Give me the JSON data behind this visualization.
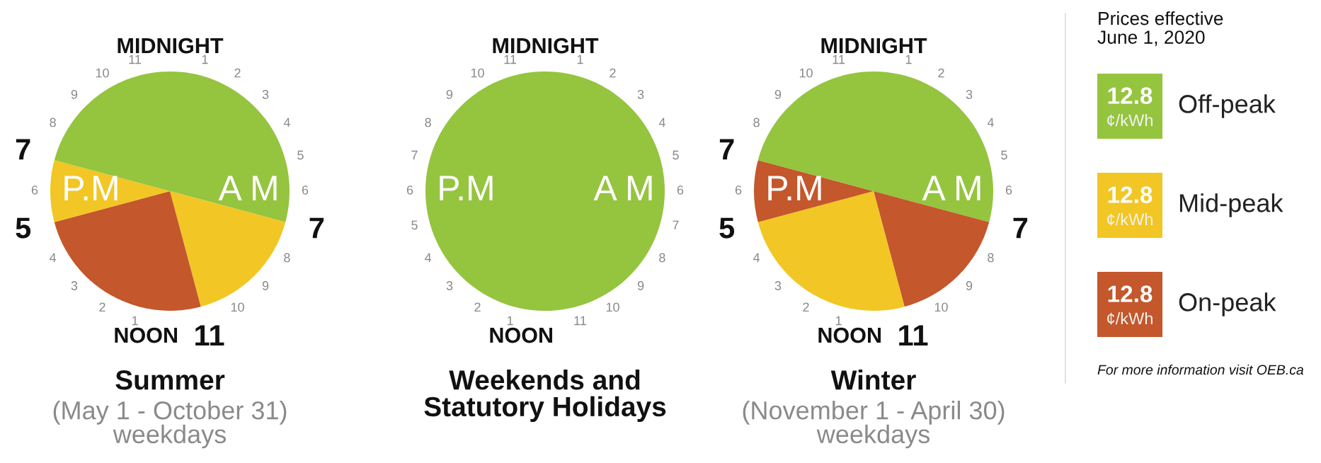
{
  "chart_data": [
    {
      "type": "pie",
      "title": "Summer",
      "subtitle": "(May 1 - October 31)\nweekdays",
      "categories": [
        null,
        null,
        null,
        null,
        null
      ],
      "values": [
        29.17,
        16.67,
        25,
        8.33,
        20.83
      ],
      "colors": [
        "#95c43f",
        "#f2c624",
        "#c4572b",
        "#f2c624",
        "#95c43f"
      ],
      "annotations": [
        "MIDNIGHT",
        "1",
        "2",
        "3",
        "4",
        "5",
        "6",
        "7",
        "8",
        "9",
        "10",
        "11",
        "NOON",
        "1",
        "2",
        "3",
        "4",
        "5",
        "6",
        "7",
        "8",
        "9",
        "10",
        "11",
        "P.M",
        "A M"
      ]
    },
    {
      "type": "pie",
      "title": "Weekends and\nStatutory Holidays",
      "categories": [
        null
      ],
      "values": [
        100
      ],
      "colors": [
        "#95c43f"
      ],
      "annotations": [
        "MIDNIGHT",
        "1",
        "2",
        "3",
        "4",
        "5",
        "6",
        "7",
        "8",
        "9",
        "10",
        "11",
        "NOON",
        "1",
        "2",
        "3",
        "4",
        "5",
        "6",
        "7",
        "8",
        "9",
        "10",
        "11",
        "P.M",
        "A M"
      ]
    },
    {
      "type": "pie",
      "title": "Winter",
      "subtitle": "(November 1 - April 30)\nweekdays",
      "categories": [
        null,
        null,
        null,
        null,
        null
      ],
      "values": [
        29.17,
        16.67,
        25,
        8.33,
        20.83
      ],
      "colors": [
        "#95c43f",
        "#c4572b",
        "#f2c624",
        "#c4572b",
        "#95c43f"
      ],
      "annotations": [
        "MIDNIGHT",
        "1",
        "2",
        "3",
        "4",
        "5",
        "6",
        "7",
        "8",
        "9",
        "10",
        "11",
        "NOON",
        "1",
        "2",
        "3",
        "4",
        "5",
        "6",
        "7",
        "8",
        "9",
        "10",
        "11",
        "P.M",
        "A M"
      ]
    },
    {
      "type": "other",
      "title": "Prices effective\nJune 1, 2020",
      "categories": [
        "Off-peak",
        "Mid-peak",
        "On-peak"
      ],
      "values": [
        12.8,
        12.8,
        12.8
      ],
      "value_labels": [
        "12.8",
        "12.8",
        "12.8"
      ],
      "colors": [
        "#95c43f",
        "#f2c624",
        "#c4572b"
      ],
      "annotations": [
        "¢/kWh",
        "For more information visit OEB.ca"
      ]
    }
  ]
}
